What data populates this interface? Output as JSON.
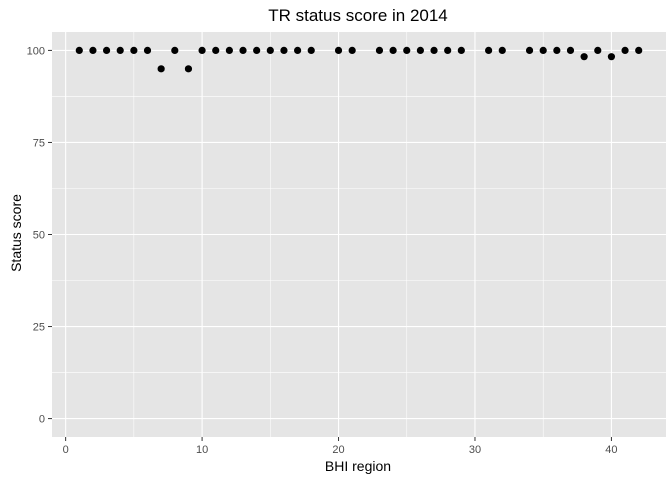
{
  "chart_data": {
    "type": "scatter",
    "title": "TR status score in 2014",
    "xlabel": "BHI region",
    "ylabel": "Status score",
    "xlim": [
      -1,
      44
    ],
    "ylim": [
      -5,
      105
    ],
    "x_ticks": [
      0,
      10,
      20,
      30,
      40
    ],
    "y_ticks": [
      0,
      25,
      50,
      75,
      100
    ],
    "grid": true,
    "points": [
      {
        "x": 1,
        "y": 100
      },
      {
        "x": 2,
        "y": 100
      },
      {
        "x": 3,
        "y": 100
      },
      {
        "x": 4,
        "y": 100
      },
      {
        "x": 5,
        "y": 100
      },
      {
        "x": 6,
        "y": 100
      },
      {
        "x": 7,
        "y": 95
      },
      {
        "x": 8,
        "y": 100
      },
      {
        "x": 9,
        "y": 95
      },
      {
        "x": 10,
        "y": 100
      },
      {
        "x": 11,
        "y": 100
      },
      {
        "x": 12,
        "y": 100
      },
      {
        "x": 13,
        "y": 100
      },
      {
        "x": 14,
        "y": 100
      },
      {
        "x": 15,
        "y": 100
      },
      {
        "x": 16,
        "y": 100
      },
      {
        "x": 17,
        "y": 100
      },
      {
        "x": 18,
        "y": 100
      },
      {
        "x": 20,
        "y": 100
      },
      {
        "x": 21,
        "y": 100
      },
      {
        "x": 23,
        "y": 100
      },
      {
        "x": 24,
        "y": 100
      },
      {
        "x": 25,
        "y": 100
      },
      {
        "x": 26,
        "y": 100
      },
      {
        "x": 27,
        "y": 100
      },
      {
        "x": 28,
        "y": 100
      },
      {
        "x": 29,
        "y": 100
      },
      {
        "x": 31,
        "y": 100
      },
      {
        "x": 32,
        "y": 100
      },
      {
        "x": 34,
        "y": 100
      },
      {
        "x": 35,
        "y": 100
      },
      {
        "x": 36,
        "y": 100
      },
      {
        "x": 37,
        "y": 100
      },
      {
        "x": 38,
        "y": 98.3
      },
      {
        "x": 39,
        "y": 100
      },
      {
        "x": 40,
        "y": 98.3
      },
      {
        "x": 41,
        "y": 100
      },
      {
        "x": 42,
        "y": 100
      }
    ]
  },
  "colors": {
    "panel_background": "#e5e5e5",
    "grid_major": "#ffffff",
    "point": "#000000"
  }
}
